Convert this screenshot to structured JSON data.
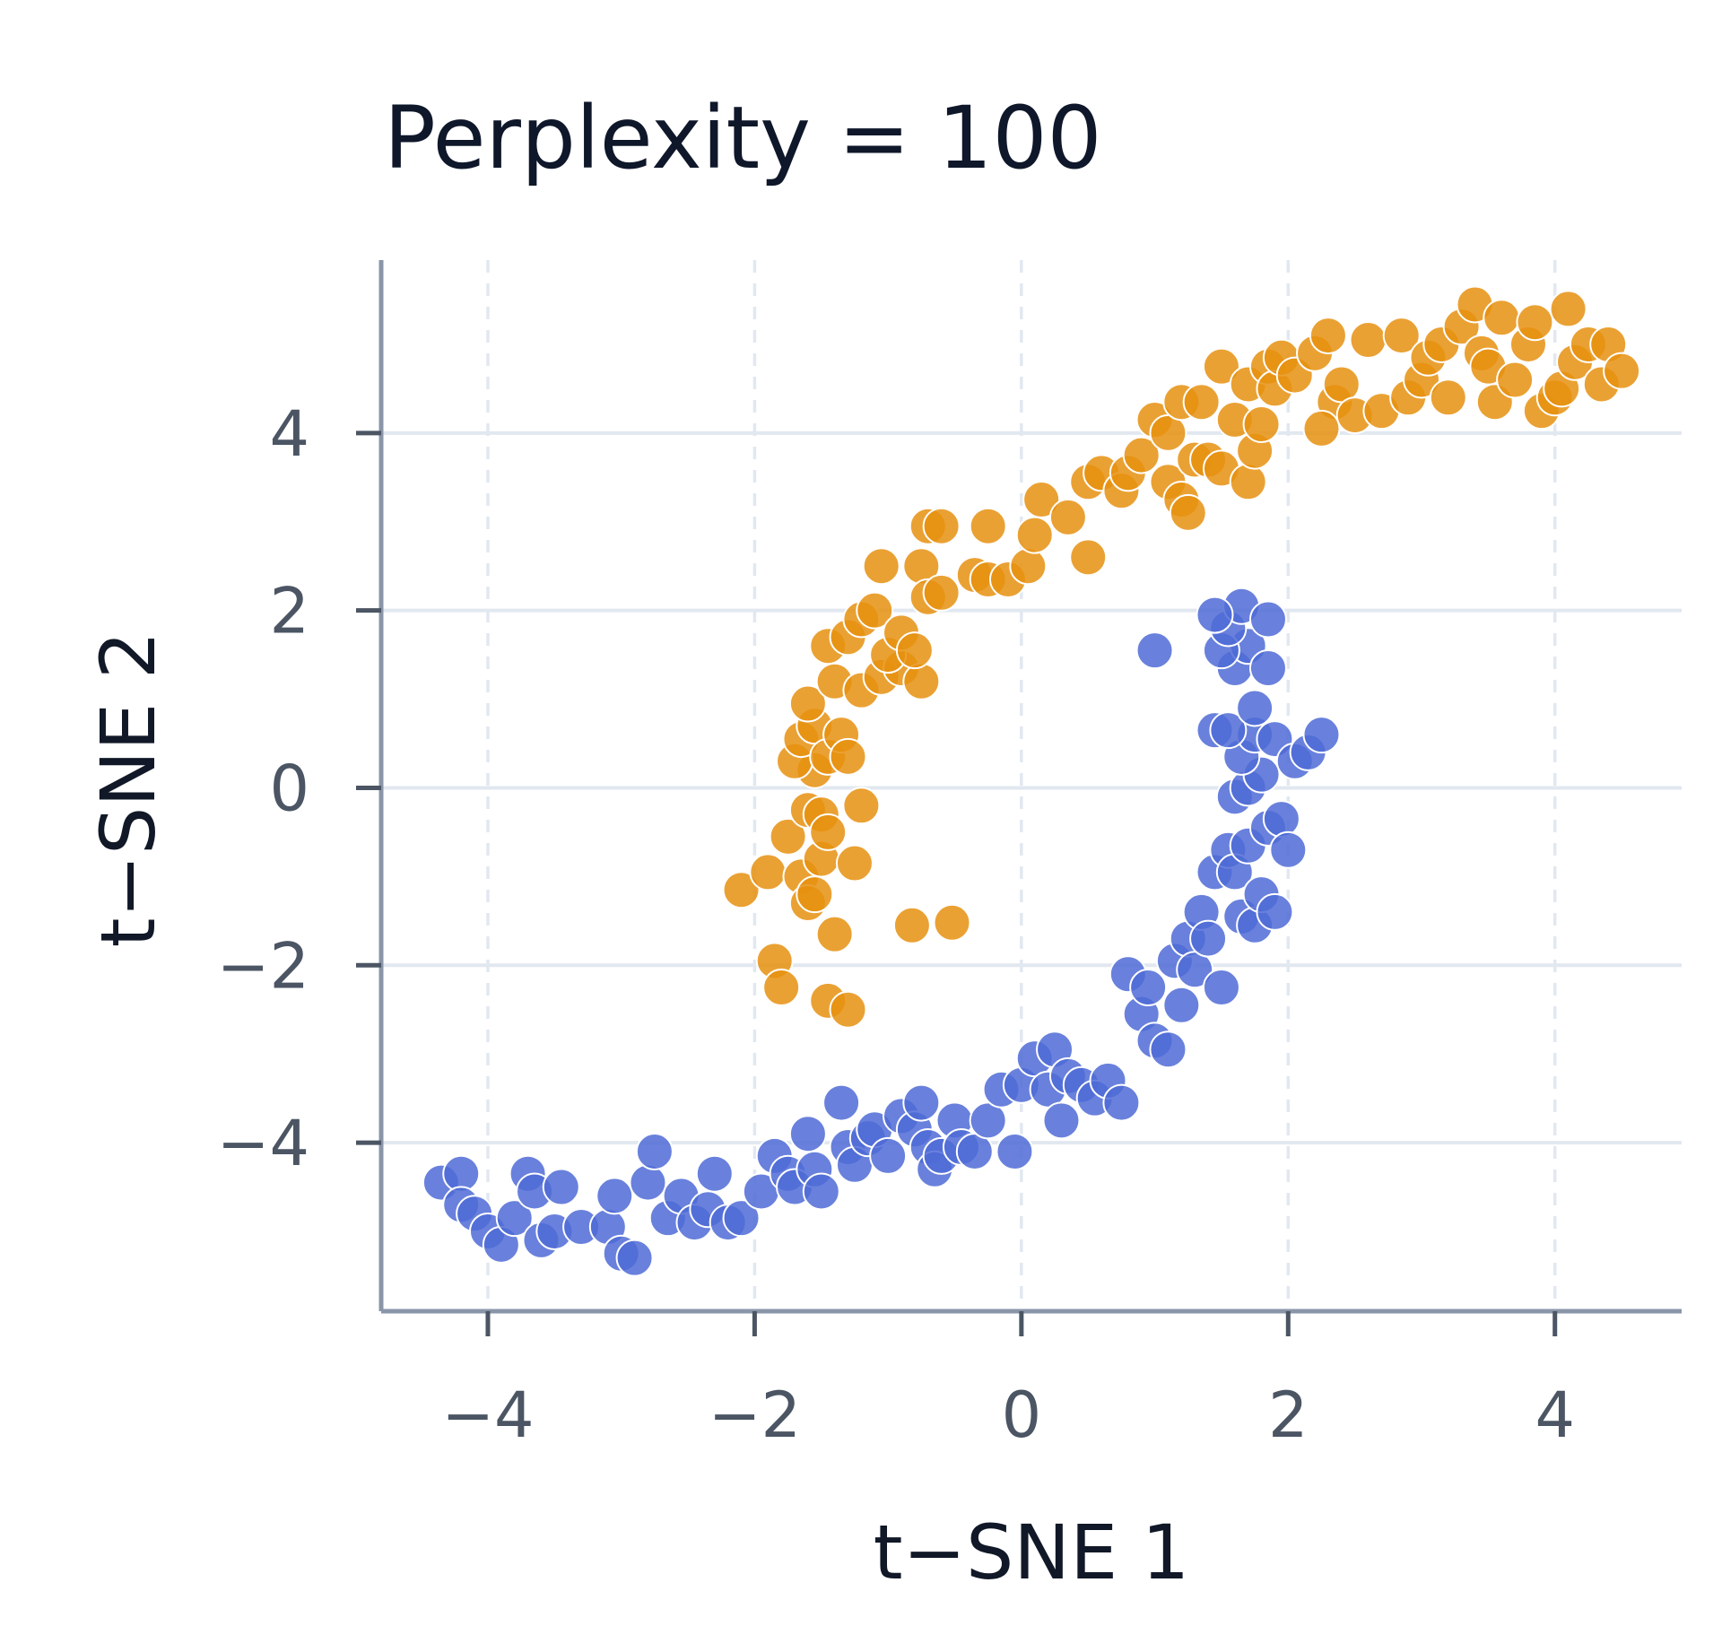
{
  "chart_data": {
    "type": "scatter",
    "title": "Perplexity = 100",
    "xlabel": "t−SNE 1",
    "ylabel": "t−SNE 2",
    "xlim": [
      -4.8,
      4.95
    ],
    "ylim": [
      -5.9,
      5.95
    ],
    "xticks": [
      -4,
      -2,
      0,
      2,
      4
    ],
    "yticks": [
      -4,
      -2,
      0,
      2,
      4
    ],
    "xtick_labels": [
      "−4",
      "−2",
      "0",
      "2",
      "4"
    ],
    "ytick_labels": [
      "−4",
      "−2",
      "0",
      "2",
      "4"
    ],
    "grid": {
      "horizontal": "solid",
      "vertical": "dashed"
    },
    "legend": "none",
    "series": [
      {
        "color": "#e6900f",
        "points": [
          [
            -2.1,
            -1.15
          ],
          [
            -1.9,
            -0.95
          ],
          [
            -1.85,
            -1.95
          ],
          [
            -1.8,
            -2.25
          ],
          [
            -1.65,
            -1.0
          ],
          [
            -1.6,
            -1.3
          ],
          [
            -1.55,
            -1.2
          ],
          [
            -1.5,
            -0.8
          ],
          [
            -1.45,
            -2.4
          ],
          [
            -1.4,
            -1.65
          ],
          [
            -1.3,
            -2.5
          ],
          [
            -1.25,
            -0.85
          ],
          [
            -0.82,
            -1.55
          ],
          [
            -0.52,
            -1.52
          ],
          [
            -1.75,
            -0.55
          ],
          [
            -1.6,
            -0.25
          ],
          [
            -1.5,
            -0.3
          ],
          [
            -1.45,
            -0.5
          ],
          [
            -1.55,
            0.2
          ],
          [
            -1.7,
            0.3
          ],
          [
            -1.65,
            0.55
          ],
          [
            -1.55,
            0.7
          ],
          [
            -1.45,
            0.35
          ],
          [
            -1.35,
            0.6
          ],
          [
            -1.3,
            0.35
          ],
          [
            -1.2,
            -0.2
          ],
          [
            -1.6,
            0.95
          ],
          [
            -1.4,
            1.2
          ],
          [
            -1.2,
            1.1
          ],
          [
            -1.05,
            1.25
          ],
          [
            -0.9,
            1.35
          ],
          [
            -0.75,
            1.2
          ],
          [
            -1.45,
            1.6
          ],
          [
            -1.3,
            1.7
          ],
          [
            -1.2,
            1.9
          ],
          [
            -1.1,
            2.0
          ],
          [
            -1.0,
            1.5
          ],
          [
            -0.9,
            1.75
          ],
          [
            -0.8,
            1.55
          ],
          [
            -1.05,
            2.5
          ],
          [
            -0.75,
            2.5
          ],
          [
            -0.7,
            2.15
          ],
          [
            -0.6,
            2.2
          ],
          [
            -0.7,
            2.95
          ],
          [
            -0.6,
            2.95
          ],
          [
            -0.35,
            2.4
          ],
          [
            -0.25,
            2.35
          ],
          [
            -0.1,
            2.35
          ],
          [
            0.05,
            2.5
          ],
          [
            -0.25,
            2.95
          ],
          [
            0.1,
            2.85
          ],
          [
            0.15,
            3.25
          ],
          [
            0.35,
            3.05
          ],
          [
            0.5,
            3.45
          ],
          [
            0.5,
            2.6
          ],
          [
            0.6,
            3.55
          ],
          [
            0.75,
            3.35
          ],
          [
            0.8,
            3.55
          ],
          [
            0.9,
            3.75
          ],
          [
            1.1,
            3.45
          ],
          [
            1.2,
            3.25
          ],
          [
            1.25,
            3.1
          ],
          [
            1.3,
            3.7
          ],
          [
            1.4,
            3.7
          ],
          [
            1.5,
            3.6
          ],
          [
            1.7,
            3.45
          ],
          [
            1.75,
            3.8
          ],
          [
            1.0,
            4.15
          ],
          [
            1.1,
            4.0
          ],
          [
            1.2,
            4.35
          ],
          [
            1.35,
            4.35
          ],
          [
            1.5,
            4.75
          ],
          [
            1.6,
            4.15
          ],
          [
            1.7,
            4.55
          ],
          [
            1.8,
            4.1
          ],
          [
            1.85,
            4.75
          ],
          [
            1.9,
            4.5
          ],
          [
            1.95,
            4.85
          ],
          [
            2.05,
            4.65
          ],
          [
            2.2,
            4.9
          ],
          [
            2.3,
            5.1
          ],
          [
            2.35,
            4.35
          ],
          [
            2.4,
            4.55
          ],
          [
            2.25,
            4.05
          ],
          [
            2.5,
            4.2
          ],
          [
            2.6,
            5.05
          ],
          [
            2.7,
            4.25
          ],
          [
            2.85,
            5.1
          ],
          [
            2.9,
            4.4
          ],
          [
            3.0,
            4.6
          ],
          [
            3.05,
            4.85
          ],
          [
            3.15,
            5.0
          ],
          [
            3.2,
            4.4
          ],
          [
            3.3,
            5.2
          ],
          [
            3.4,
            5.45
          ],
          [
            3.45,
            4.9
          ],
          [
            3.5,
            4.75
          ],
          [
            3.55,
            4.35
          ],
          [
            3.6,
            5.3
          ],
          [
            3.7,
            4.6
          ],
          [
            3.8,
            5.0
          ],
          [
            3.85,
            5.25
          ],
          [
            3.9,
            4.25
          ],
          [
            4.0,
            4.4
          ],
          [
            4.05,
            4.5
          ],
          [
            4.1,
            5.4
          ],
          [
            4.15,
            4.8
          ],
          [
            4.25,
            5.0
          ],
          [
            4.35,
            4.55
          ],
          [
            4.4,
            5.0
          ],
          [
            4.5,
            4.7
          ]
        ]
      },
      {
        "color": "#4f6bd6",
        "points": [
          [
            -4.35,
            -4.45
          ],
          [
            -4.2,
            -4.35
          ],
          [
            -4.2,
            -4.7
          ],
          [
            -4.1,
            -4.8
          ],
          [
            -4.0,
            -5.0
          ],
          [
            -3.9,
            -5.15
          ],
          [
            -3.8,
            -4.85
          ],
          [
            -3.7,
            -4.35
          ],
          [
            -3.65,
            -4.55
          ],
          [
            -3.6,
            -5.1
          ],
          [
            -3.5,
            -5.0
          ],
          [
            -3.45,
            -4.5
          ],
          [
            -3.3,
            -4.95
          ],
          [
            -3.1,
            -4.95
          ],
          [
            -3.05,
            -4.6
          ],
          [
            -3.0,
            -5.25
          ],
          [
            -2.9,
            -5.3
          ],
          [
            -2.8,
            -4.45
          ],
          [
            -2.75,
            -4.1
          ],
          [
            -2.65,
            -4.85
          ],
          [
            -2.55,
            -4.6
          ],
          [
            -2.45,
            -4.9
          ],
          [
            -2.35,
            -4.75
          ],
          [
            -2.3,
            -4.35
          ],
          [
            -2.2,
            -4.9
          ],
          [
            -2.1,
            -4.85
          ],
          [
            -1.95,
            -4.55
          ],
          [
            -1.85,
            -4.15
          ],
          [
            -1.75,
            -4.35
          ],
          [
            -1.7,
            -4.5
          ],
          [
            -1.6,
            -3.9
          ],
          [
            -1.55,
            -4.3
          ],
          [
            -1.5,
            -4.55
          ],
          [
            -1.35,
            -3.55
          ],
          [
            -1.3,
            -4.05
          ],
          [
            -1.25,
            -4.25
          ],
          [
            -1.15,
            -3.95
          ],
          [
            -1.1,
            -3.85
          ],
          [
            -1.0,
            -4.15
          ],
          [
            -0.9,
            -3.7
          ],
          [
            -0.8,
            -3.85
          ],
          [
            -0.75,
            -3.55
          ],
          [
            -0.7,
            -4.05
          ],
          [
            -0.65,
            -4.3
          ],
          [
            -0.6,
            -4.15
          ],
          [
            -0.5,
            -3.75
          ],
          [
            -0.45,
            -4.05
          ],
          [
            -0.35,
            -4.1
          ],
          [
            -0.25,
            -3.75
          ],
          [
            -0.15,
            -3.4
          ],
          [
            -0.05,
            -4.1
          ],
          [
            0.0,
            -3.35
          ],
          [
            0.1,
            -3.05
          ],
          [
            0.2,
            -3.4
          ],
          [
            0.25,
            -2.95
          ],
          [
            0.3,
            -3.75
          ],
          [
            0.35,
            -3.25
          ],
          [
            0.45,
            -3.35
          ],
          [
            0.55,
            -3.5
          ],
          [
            0.65,
            -3.3
          ],
          [
            0.75,
            -3.55
          ],
          [
            0.8,
            -2.1
          ],
          [
            0.9,
            -2.55
          ],
          [
            0.95,
            -2.25
          ],
          [
            1.0,
            -2.85
          ],
          [
            1.1,
            -2.95
          ],
          [
            1.15,
            -1.95
          ],
          [
            1.2,
            -2.45
          ],
          [
            1.25,
            -1.7
          ],
          [
            1.3,
            -2.05
          ],
          [
            1.35,
            -1.4
          ],
          [
            1.4,
            -1.7
          ],
          [
            1.45,
            -0.95
          ],
          [
            1.5,
            -2.25
          ],
          [
            1.55,
            -0.7
          ],
          [
            1.6,
            -0.95
          ],
          [
            1.65,
            -1.45
          ],
          [
            1.7,
            -0.65
          ],
          [
            1.75,
            -1.55
          ],
          [
            1.8,
            -1.2
          ],
          [
            1.85,
            -0.45
          ],
          [
            1.9,
            -1.4
          ],
          [
            1.95,
            -0.35
          ],
          [
            2.0,
            -0.7
          ],
          [
            1.6,
            -0.1
          ],
          [
            1.7,
            0.0
          ],
          [
            1.8,
            0.15
          ],
          [
            1.65,
            0.35
          ],
          [
            1.75,
            0.6
          ],
          [
            1.9,
            0.55
          ],
          [
            2.05,
            0.3
          ],
          [
            2.15,
            0.4
          ],
          [
            2.25,
            0.6
          ],
          [
            1.6,
            1.35
          ],
          [
            1.7,
            1.6
          ],
          [
            1.85,
            1.35
          ],
          [
            1.45,
            0.65
          ],
          [
            1.55,
            0.65
          ],
          [
            1.75,
            0.9
          ],
          [
            1.5,
            1.55
          ],
          [
            1.55,
            1.8
          ],
          [
            1.65,
            2.05
          ],
          [
            1.85,
            1.9
          ],
          [
            1.0,
            1.55
          ],
          [
            1.45,
            1.95
          ]
        ]
      }
    ]
  }
}
